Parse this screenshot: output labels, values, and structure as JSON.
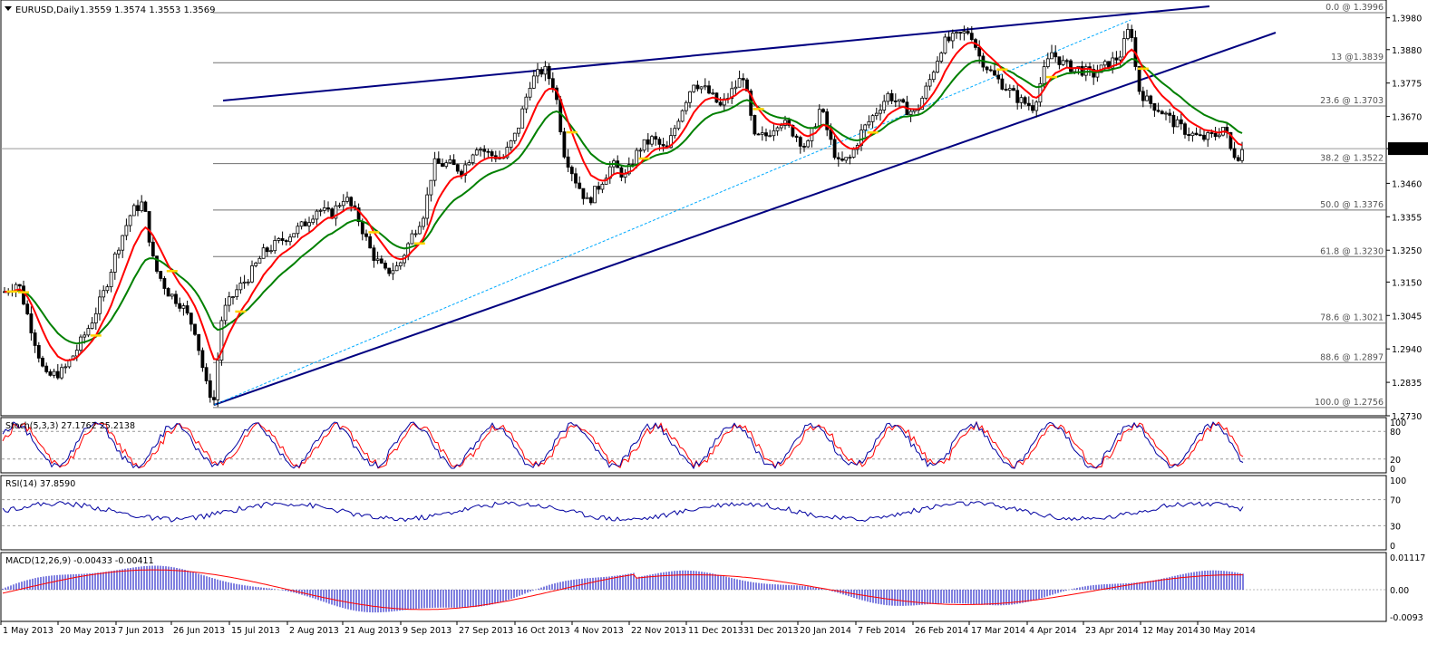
{
  "header": {
    "title": "EURUSD,Daily",
    "ohlc": "1.3559 1.3574 1.3553 1.3569"
  },
  "colors": {
    "background": "#ffffff",
    "frame": "#000000",
    "candle": "#000000",
    "ema_fast": "#ff0000",
    "ema_slow": "#008000",
    "ema_marker": "#ffd400",
    "trendline": "#000080",
    "dotted_line": "#00aaff",
    "fib_line": "#707070",
    "oscillator_main": "#0000a0",
    "oscillator_signal": "#ff0000",
    "macd_hist": "#0000c0",
    "current_price_box": "#000000"
  },
  "price_axis": {
    "current": "1.3569",
    "ticks": [
      "1.3980",
      "1.3880",
      "1.3775",
      "1.3670",
      "1.3569",
      "1.3460",
      "1.3355",
      "1.3250",
      "1.3150",
      "1.3045",
      "1.2940",
      "1.2835",
      "1.2730"
    ]
  },
  "fib_levels": [
    {
      "label": "0.0 @ 1.3996",
      "price": 1.3996
    },
    {
      "label": "13 @1.3839",
      "price": 1.3839
    },
    {
      "label": "23.6 @ 1.3703",
      "price": 1.3703
    },
    {
      "label": "38.2 @ 1.3522",
      "price": 1.3522
    },
    {
      "label": "50.0 @ 1.3376",
      "price": 1.3376
    },
    {
      "label": "61.8 @ 1.3230",
      "price": 1.323
    },
    {
      "label": "78.6 @ 1.3021",
      "price": 1.3021
    },
    {
      "label": "88.6 @ 1.2897",
      "price": 1.2897
    },
    {
      "label": "100.0 @ 1.2756",
      "price": 1.2756
    }
  ],
  "date_axis": [
    "1 May 2013",
    "20 May 2013",
    "7 Jun 2013",
    "26 Jun 2013",
    "15 Jul 2013",
    "2 Aug 2013",
    "21 Aug 2013",
    "9 Sep 2013",
    "27 Sep 2013",
    "16 Oct 2013",
    "4 Nov 2013",
    "22 Nov 2013",
    "11 Dec 2013",
    "31 Dec 2013",
    "20 Jan 2014",
    "7 Feb 2014",
    "26 Feb 2014",
    "17 Mar 2014",
    "4 Apr 2014",
    "23 Apr 2014",
    "12 May 2014",
    "30 May 2014"
  ],
  "stoch": {
    "label": "Stoch(5,3,3) 27.1762 25.2138",
    "ticks": [
      "100",
      "80",
      "20",
      "0"
    ]
  },
  "rsi": {
    "label": "RSI(14) 37.8590",
    "ticks": [
      "100",
      "70",
      "30",
      "0"
    ]
  },
  "macd": {
    "label": "MACD(12,26,9) -0.00433 -0.00411",
    "ticks": [
      "0.01117",
      "0.00",
      "-0.0093"
    ]
  },
  "chart_data": {
    "type": "line",
    "title": "EURUSD,Daily",
    "xlabel": "",
    "ylabel": "",
    "ylim": [
      1.273,
      1.4033
    ],
    "x": [
      "1 May 2013",
      "20 May 2013",
      "7 Jun 2013",
      "26 Jun 2013",
      "15 Jul 2013",
      "2 Aug 2013",
      "21 Aug 2013",
      "9 Sep 2013",
      "27 Sep 2013",
      "16 Oct 2013",
      "4 Nov 2013",
      "22 Nov 2013",
      "11 Dec 2013",
      "31 Dec 2013",
      "20 Jan 2014",
      "7 Feb 2014",
      "26 Feb 2014",
      "17 Mar 2014",
      "4 Apr 2014",
      "23 Apr 2014",
      "12 May 2014",
      "30 May 2014"
    ],
    "series": [
      {
        "values": [
          1.311,
          1.29,
          1.334,
          1.279,
          1.308,
          1.325,
          1.335,
          1.328,
          1.352,
          1.38,
          1.344,
          1.351,
          1.378,
          1.372,
          1.356,
          1.359,
          1.378,
          1.39,
          1.37,
          1.385,
          1.374,
          1.356
        ]
      }
    ],
    "last_price": 1.3569,
    "grid": false
  }
}
